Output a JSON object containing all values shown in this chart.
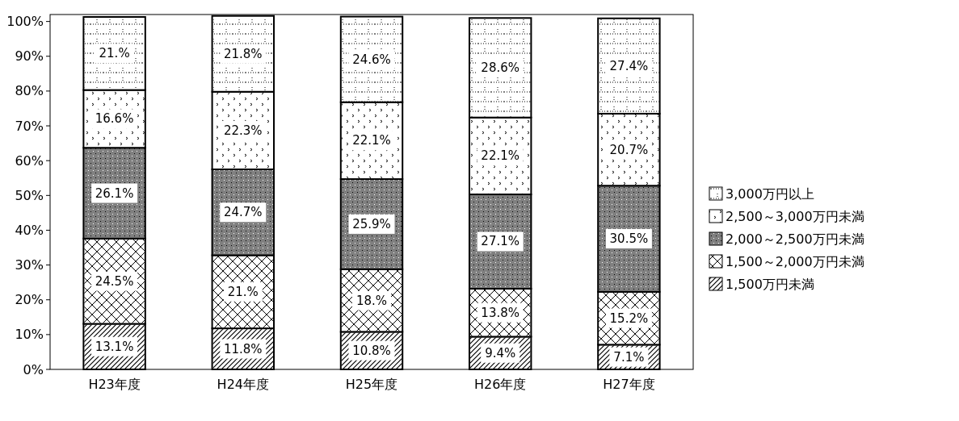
{
  "chart_data": {
    "type": "bar",
    "stacked": true,
    "categories": [
      "H23年度",
      "H24年度",
      "H25年度",
      "H26年度",
      "H27年度"
    ],
    "series": [
      {
        "name": "1,500万円未満",
        "color": "#ffffff",
        "values": [
          13.1,
          11.8,
          10.8,
          9.4,
          7.1
        ],
        "value_labels": [
          "13.1%",
          "11.8%",
          "10.8%",
          "9.4%",
          "7.1%"
        ]
      },
      {
        "name": "1,500～2,000万円未満",
        "color": "#ffffff",
        "values": [
          24.5,
          21,
          18,
          13.8,
          15.2
        ],
        "value_labels": [
          "24.5%",
          "21.%",
          "18.%",
          "13.8%",
          "15.2%"
        ]
      },
      {
        "name": "2,000～2,500万円未満",
        "color": "#808080",
        "values": [
          26.1,
          24.7,
          25.9,
          27.1,
          30.5
        ],
        "value_labels": [
          "26.1%",
          "24.7%",
          "25.9%",
          "27.1%",
          "30.5%"
        ]
      },
      {
        "name": "2,500～3,000万円未満",
        "color": "#ffffff",
        "values": [
          16.6,
          22.3,
          22.1,
          22.1,
          20.7
        ],
        "value_labels": [
          "16.6%",
          "22.3%",
          "22.1%",
          "22.1%",
          "20.7%"
        ]
      },
      {
        "name": "3,000万円以上",
        "color": "#ffffff",
        "values": [
          21,
          21.8,
          24.6,
          28.6,
          27.4
        ],
        "value_labels": [
          "21.%",
          "21.8%",
          "24.6%",
          "28.6%",
          "27.4%"
        ]
      }
    ],
    "ylim": [
      0,
      102
    ],
    "yticks": [
      {
        "value": 0,
        "label": "0%"
      },
      {
        "value": 10,
        "label": "10%"
      },
      {
        "value": 20,
        "label": "20%"
      },
      {
        "value": 30,
        "label": "30%"
      },
      {
        "value": 40,
        "label": "40%"
      },
      {
        "value": 50,
        "label": "50%"
      },
      {
        "value": 60,
        "label": "60%"
      },
      {
        "value": 70,
        "label": "70%"
      },
      {
        "value": 80,
        "label": "80%"
      },
      {
        "value": 90,
        "label": "90%"
      },
      {
        "value": 100,
        "label": "100%"
      }
    ],
    "legend": "right"
  }
}
